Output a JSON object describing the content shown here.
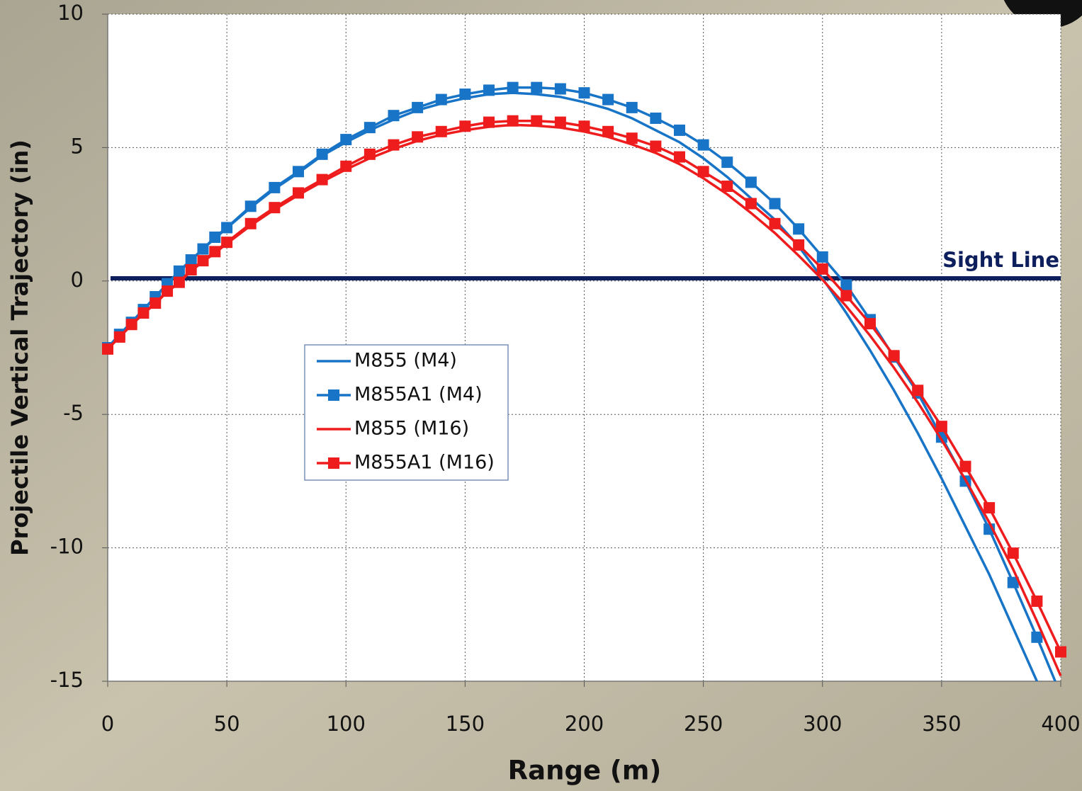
{
  "chart_data": {
    "type": "line",
    "xlabel": "Range (m)",
    "ylabel": "Projectile Vertical Trajectory (in)",
    "x": [
      0,
      5,
      10,
      15,
      20,
      25,
      30,
      35,
      40,
      45,
      50,
      60,
      70,
      80,
      90,
      100,
      110,
      120,
      130,
      140,
      150,
      160,
      170,
      180,
      190,
      200,
      210,
      220,
      230,
      240,
      250,
      260,
      270,
      280,
      290,
      300,
      310,
      320,
      330,
      340,
      350,
      360,
      370,
      380,
      390,
      400
    ],
    "series": [
      {
        "name": "M855 (M4)",
        "color": "#1874c6",
        "marker": "none",
        "values": [
          -2.5,
          -2.0,
          -1.55,
          -1.07,
          -0.6,
          -0.12,
          0.35,
          0.78,
          1.2,
          1.6,
          1.98,
          2.75,
          3.45,
          4.05,
          4.7,
          5.2,
          5.65,
          6.05,
          6.4,
          6.65,
          6.85,
          7.0,
          7.05,
          7.0,
          6.9,
          6.7,
          6.45,
          6.1,
          5.65,
          5.2,
          4.6,
          3.9,
          3.1,
          2.3,
          1.3,
          0.1,
          -1.2,
          -2.6,
          -4.1,
          -5.7,
          -7.4,
          -9.2,
          -11.0,
          -13.0,
          -15.0,
          -17.1
        ]
      },
      {
        "name": "M855A1 (M4)",
        "color": "#1874c6",
        "marker": "square",
        "values": [
          -2.5,
          -2.0,
          -1.55,
          -1.07,
          -0.59,
          -0.1,
          0.37,
          0.79,
          1.2,
          1.64,
          2.0,
          2.8,
          3.5,
          4.1,
          4.75,
          5.3,
          5.75,
          6.2,
          6.5,
          6.8,
          7.0,
          7.15,
          7.25,
          7.25,
          7.2,
          7.05,
          6.8,
          6.5,
          6.1,
          5.65,
          5.1,
          4.45,
          3.7,
          2.9,
          1.95,
          0.9,
          -0.15,
          -1.45,
          -2.85,
          -4.2,
          -5.85,
          -7.5,
          -9.3,
          -11.3,
          -13.35,
          -15.5
        ]
      },
      {
        "name": "M855 (M16)",
        "color": "#ee1c1c",
        "marker": "none",
        "values": [
          -2.55,
          -2.1,
          -1.65,
          -1.22,
          -0.85,
          -0.4,
          -0.07,
          0.38,
          0.72,
          1.05,
          1.4,
          2.08,
          2.68,
          3.22,
          3.72,
          4.18,
          4.6,
          4.95,
          5.25,
          5.48,
          5.65,
          5.78,
          5.85,
          5.82,
          5.75,
          5.6,
          5.4,
          5.12,
          4.8,
          4.38,
          3.85,
          3.25,
          2.55,
          1.8,
          0.95,
          0.05,
          -0.95,
          -2.05,
          -3.25,
          -4.55,
          -5.95,
          -7.45,
          -9.05,
          -10.8,
          -12.75,
          -14.8
        ]
      },
      {
        "name": "M855A1 (M16)",
        "color": "#ee1c1c",
        "marker": "square",
        "values": [
          -2.55,
          -2.1,
          -1.63,
          -1.2,
          -0.83,
          -0.38,
          -0.05,
          0.42,
          0.76,
          1.1,
          1.45,
          2.15,
          2.75,
          3.3,
          3.8,
          4.3,
          4.75,
          5.1,
          5.4,
          5.6,
          5.8,
          5.95,
          6.0,
          6.0,
          5.95,
          5.8,
          5.6,
          5.35,
          5.05,
          4.65,
          4.1,
          3.55,
          2.9,
          2.15,
          1.35,
          0.45,
          -0.55,
          -1.6,
          -2.8,
          -4.1,
          -5.45,
          -6.95,
          -8.5,
          -10.2,
          -12.0,
          -13.9
        ]
      }
    ],
    "sight_line": {
      "label": "Sight Line",
      "value": 0.1,
      "color": "#0d1f5c"
    },
    "xlim": [
      0,
      400
    ],
    "xticks": [
      0,
      50,
      100,
      150,
      200,
      250,
      300,
      350,
      400
    ],
    "ylim": [
      -15,
      10
    ],
    "yticks": [
      -15,
      -10,
      -5,
      0,
      5,
      10
    ],
    "grid": true
  }
}
